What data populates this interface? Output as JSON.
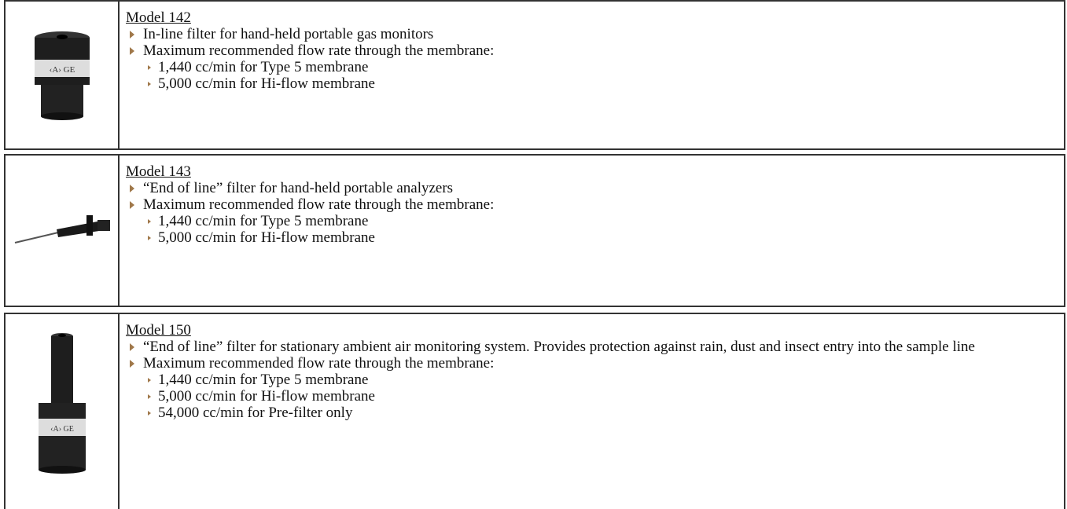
{
  "products": [
    {
      "model": "Model 142",
      "items": [
        {
          "text": "In-line filter for hand-held portable gas monitors"
        },
        {
          "text": "Maximum recommended flow rate through the membrane:",
          "subitems": [
            "1,440 cc/min for Type 5 membrane",
            "5,000 cc/min for Hi-flow membrane"
          ]
        }
      ]
    },
    {
      "model": "Model 143",
      "items": [
        {
          "text": "“End of line” filter for hand-held portable analyzers"
        },
        {
          "text": "Maximum recommended flow rate through the membrane:",
          "subitems": [
            "1,440 cc/min for Type 5 membrane",
            "5,000 cc/min for Hi-flow membrane"
          ]
        }
      ]
    },
    {
      "model": "Model 150",
      "items": [
        {
          "text": "“End of line” filter for stationary ambient air monitoring system. Provides protection against rain, dust and insect entry into the sample line"
        },
        {
          "text": "Maximum recommended flow rate through the membrane:",
          "subitems": [
            "1,440 cc/min for Type 5 membrane",
            "5,000 cc/min for Hi-flow membrane",
            "54,000 cc/min for Pre-filter only"
          ]
        }
      ]
    }
  ]
}
